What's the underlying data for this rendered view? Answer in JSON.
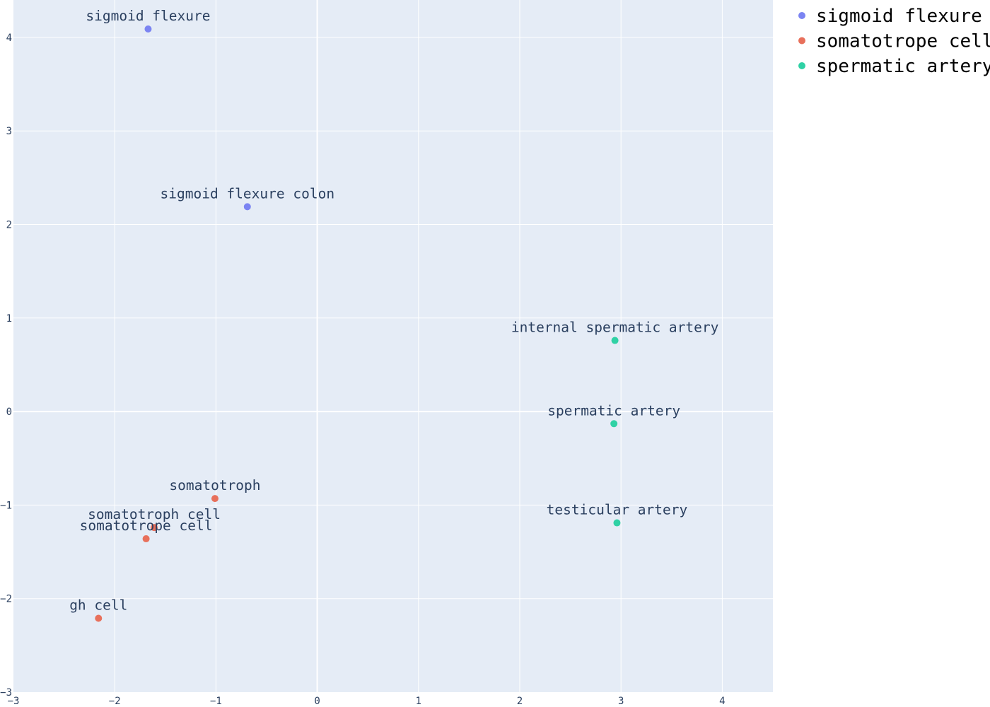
{
  "chart_data": {
    "type": "scatter",
    "xlim": [
      -3,
      4.5
    ],
    "ylim": [
      -3,
      4.4
    ],
    "x_ticks": [
      -3,
      -2,
      -1,
      0,
      1,
      2,
      3,
      4
    ],
    "y_ticks": [
      -3,
      -2,
      -1,
      0,
      1,
      2,
      3,
      4
    ],
    "x_tick_labels": [
      "−3",
      "−2",
      "−1",
      "0",
      "1",
      "2",
      "3",
      "4"
    ],
    "y_tick_labels": [
      "−3",
      "−2",
      "−1",
      "0",
      "1",
      "2",
      "3",
      "4"
    ],
    "grid": true,
    "legend_position": "top-right outside",
    "series": [
      {
        "name": "sigmoid flexure",
        "color": "#7b84f2",
        "points": [
          {
            "x": -1.67,
            "y": 4.09,
            "label": "sigmoid flexure"
          },
          {
            "x": -0.69,
            "y": 2.19,
            "label": "sigmoid flexure colon"
          }
        ]
      },
      {
        "name": "somatotrope cell",
        "color": "#e8705b",
        "points": [
          {
            "x": -1.01,
            "y": -0.93,
            "label": "somatotroph"
          },
          {
            "x": -1.61,
            "y": -1.24,
            "label": "somatotroph cell"
          },
          {
            "x": -1.69,
            "y": -1.36,
            "label": "somatotrope cell"
          },
          {
            "x": -2.16,
            "y": -2.21,
            "label": "gh cell"
          }
        ]
      },
      {
        "name": "spermatic artery",
        "color": "#2fd1a5",
        "points": [
          {
            "x": 2.94,
            "y": 0.76,
            "label": "internal spermatic artery"
          },
          {
            "x": 2.93,
            "y": -0.13,
            "label": "spermatic artery"
          },
          {
            "x": 2.96,
            "y": -1.19,
            "label": "testicular artery"
          }
        ]
      }
    ]
  }
}
